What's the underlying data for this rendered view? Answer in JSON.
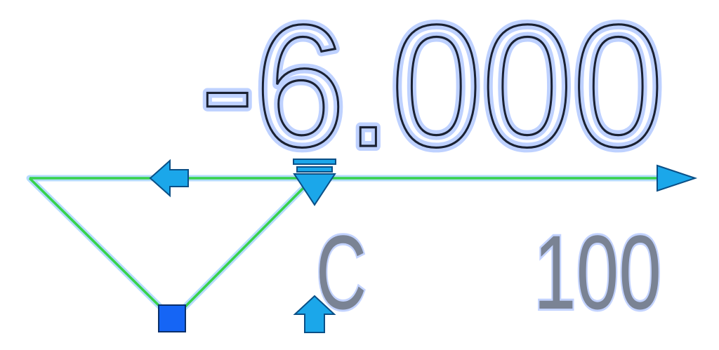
{
  "annotation": {
    "elevation_value": "-6.000",
    "tag_letter": "C",
    "tag_number": "100"
  },
  "colors": {
    "line_green": "#37d24a",
    "line_halo": "#b5dcff",
    "grip_cyan": "#1ba7ea",
    "grip_outline": "#0a4f86",
    "square_grip": "#1565f5",
    "text_dark": "#1b2233",
    "text_glow": "#b8cdff",
    "tag_gray": "#7a8394"
  },
  "icons": {
    "left_arrow_grip": "arrow-left-grip-icon",
    "right_arrow_grip": "arrow-right-grip-icon",
    "up_arrow_grip": "arrow-up-grip-icon",
    "elevation_marker": "elevation-triangle-marker-icon",
    "square_grip": "square-grip-icon"
  }
}
